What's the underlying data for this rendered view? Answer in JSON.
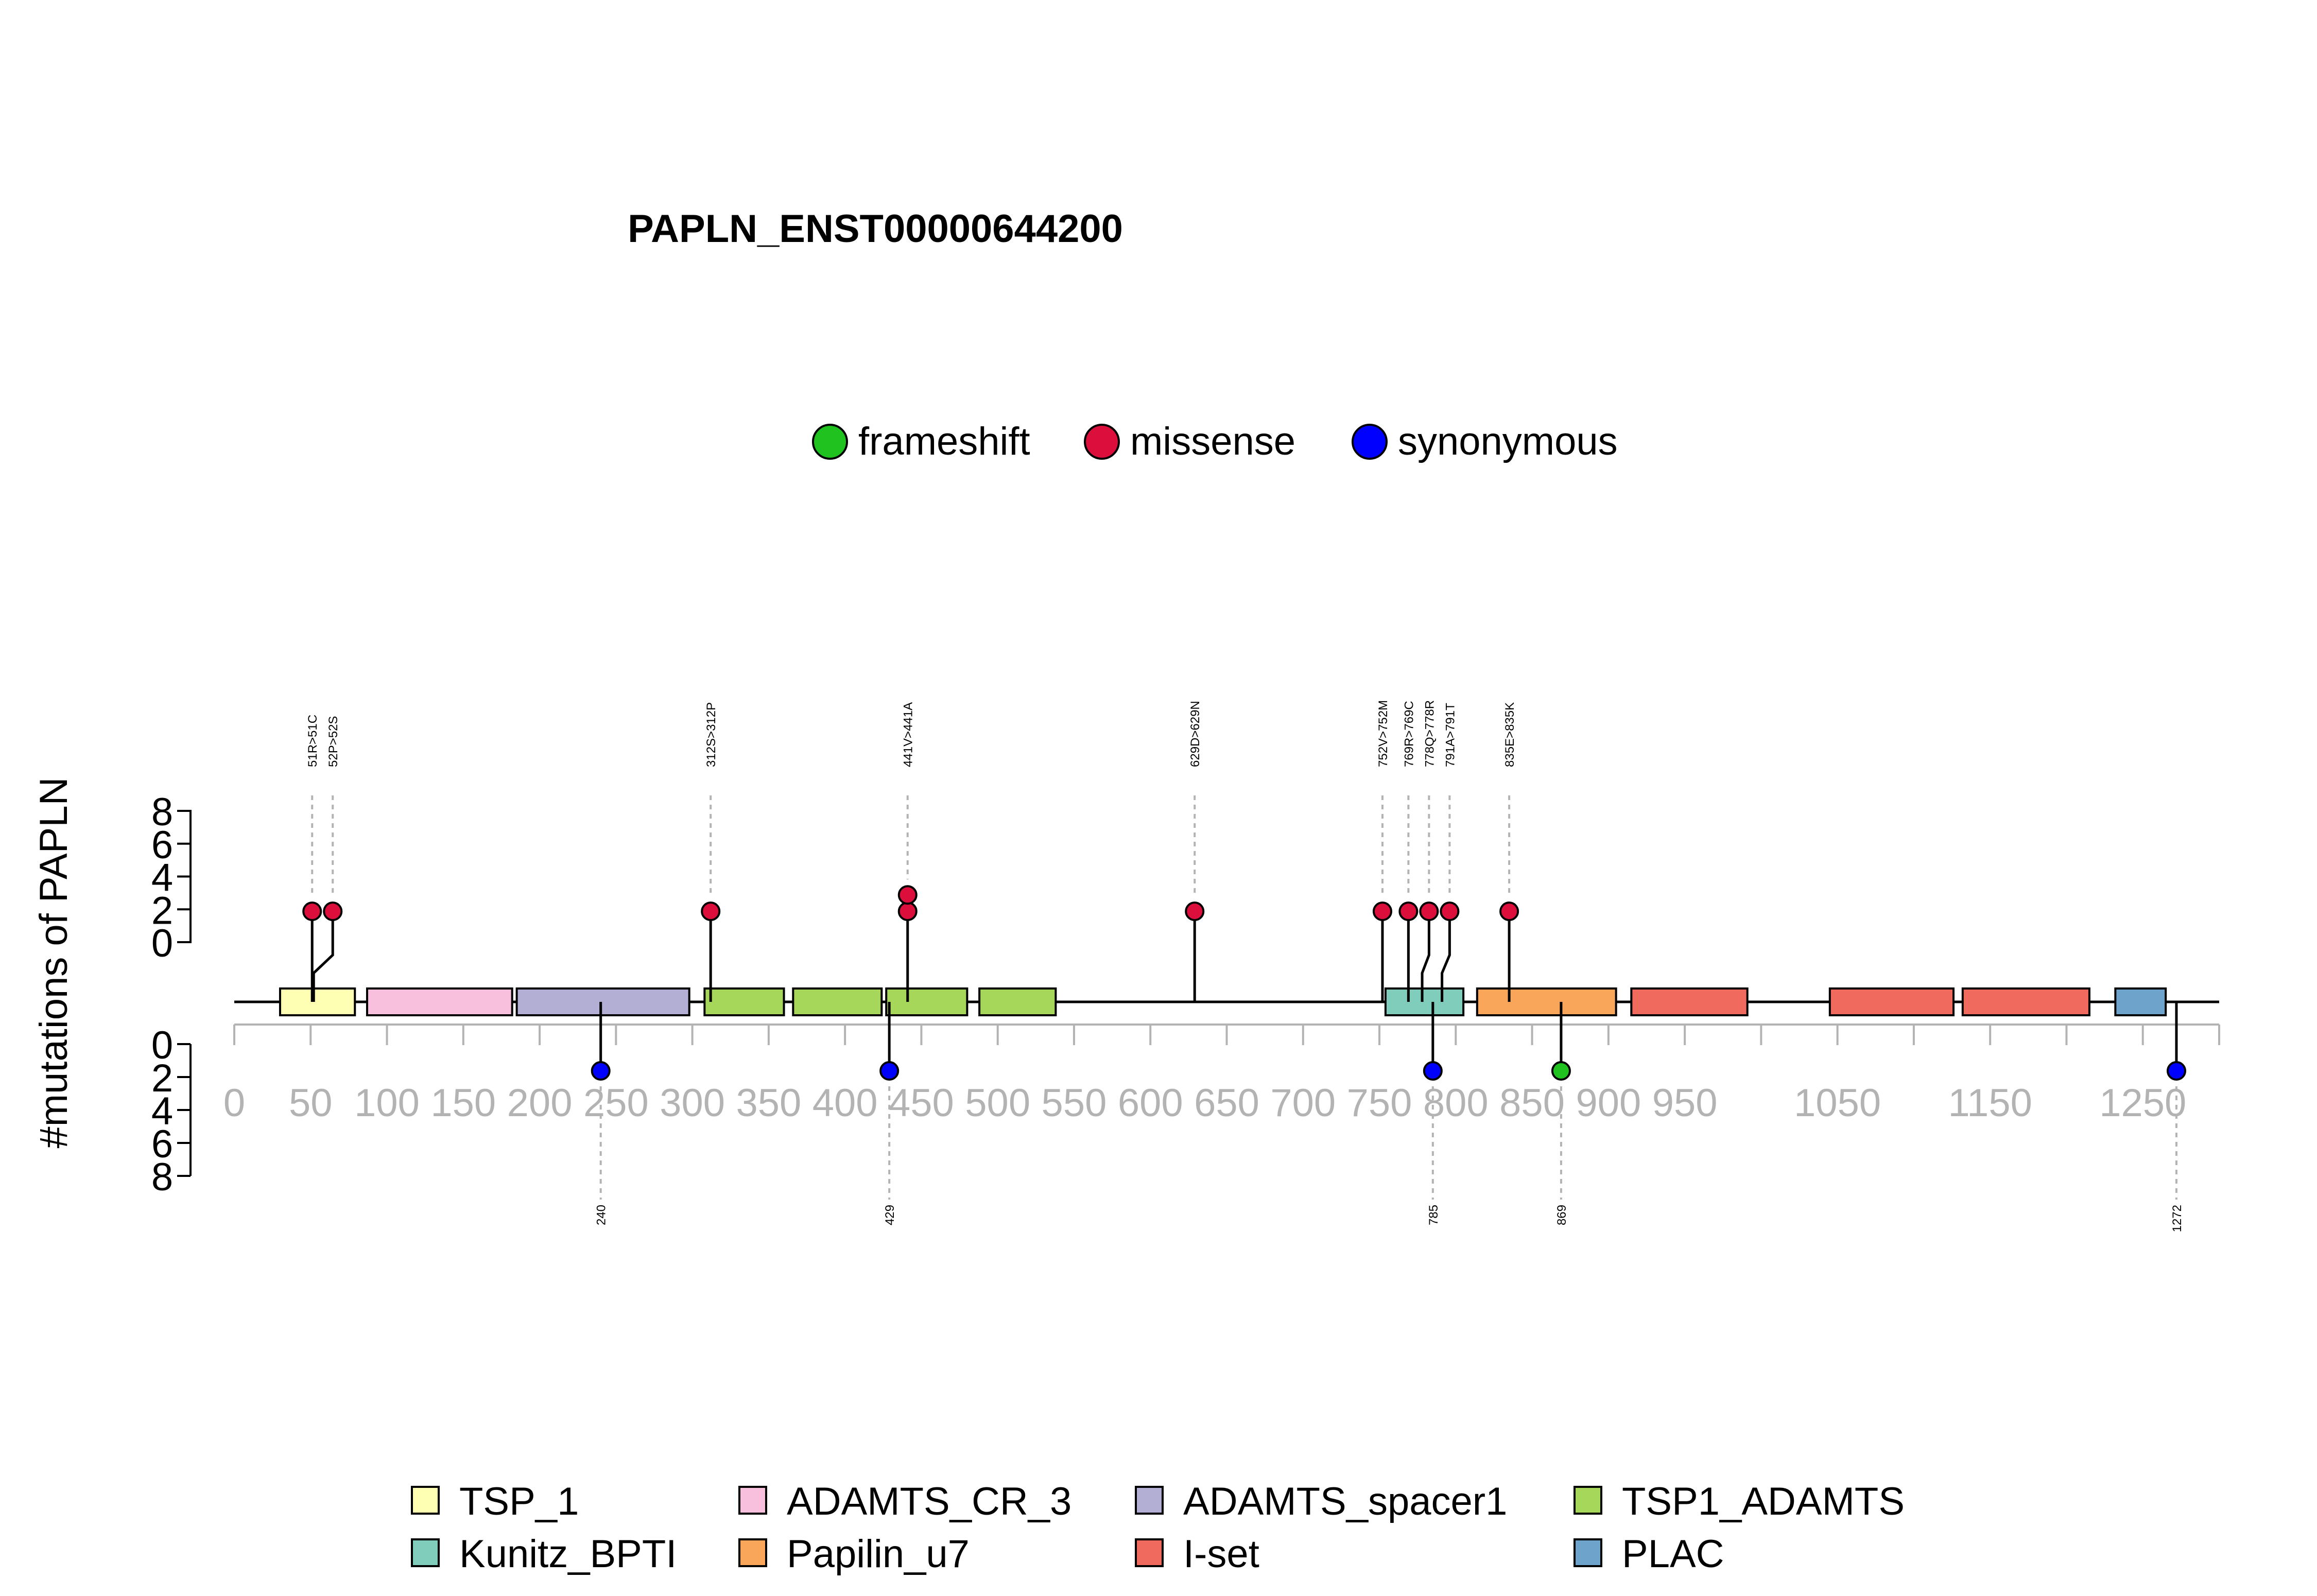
{
  "chart_data": {
    "type": "lollipop",
    "title": "PAPLN_ENST00000644200",
    "ylabel": "#mutations of PAPLN",
    "y_ticks_upper": [
      "8",
      "6",
      "4",
      "2",
      "0"
    ],
    "y_ticks_lower": [
      "0",
      "2",
      "4",
      "6",
      "8"
    ],
    "ylim": [
      0,
      8
    ],
    "xlim": [
      0,
      1300
    ],
    "x_tick_labels": [
      "0",
      "50",
      "100",
      "150",
      "200",
      "250",
      "300",
      "350",
      "400",
      "450",
      "500",
      "550",
      "600",
      "650",
      "700",
      "750",
      "800",
      "850",
      "900",
      "950",
      "1050",
      "1150",
      "1250"
    ],
    "mutation_types": [
      {
        "name": "frameshift",
        "color": "#1fc21f"
      },
      {
        "name": "missense",
        "color": "#dc0f3c"
      },
      {
        "name": "synonymous",
        "color": "#0000ff"
      }
    ],
    "mutations_top": [
      {
        "pos": 51,
        "label": "51R>51C",
        "type": "missense",
        "count": 1
      },
      {
        "pos": 52,
        "label": "52P>52S",
        "type": "missense",
        "count": 1
      },
      {
        "pos": 312,
        "label": "312S>312P",
        "type": "missense",
        "count": 1
      },
      {
        "pos": 441,
        "label": "441V>441A",
        "type": "missense",
        "count": 2
      },
      {
        "pos": 629,
        "label": "629D>629N",
        "type": "missense",
        "count": 1
      },
      {
        "pos": 752,
        "label": "752V>752M",
        "type": "missense",
        "count": 1
      },
      {
        "pos": 769,
        "label": "769R>769C",
        "type": "missense",
        "count": 1
      },
      {
        "pos": 778,
        "label": "778Q>778R",
        "type": "missense",
        "count": 1
      },
      {
        "pos": 791,
        "label": "791A>791T",
        "type": "missense",
        "count": 1
      },
      {
        "pos": 835,
        "label": "835E>835K",
        "type": "missense",
        "count": 1
      }
    ],
    "mutations_bottom": [
      {
        "pos": 240,
        "label": "240",
        "type": "synonymous",
        "count": 1
      },
      {
        "pos": 429,
        "label": "429",
        "type": "synonymous",
        "count": 1
      },
      {
        "pos": 785,
        "label": "785",
        "type": "synonymous",
        "count": 1
      },
      {
        "pos": 869,
        "label": "869",
        "type": "frameshift",
        "count": 1
      },
      {
        "pos": 1272,
        "label": "1272",
        "type": "synonymous",
        "count": 1
      }
    ],
    "domains": [
      {
        "name": "TSP_1",
        "start": 30,
        "end": 79
      },
      {
        "name": "ADAMTS_CR_3",
        "start": 87,
        "end": 182
      },
      {
        "name": "ADAMTS_spacer1",
        "start": 185,
        "end": 298
      },
      {
        "name": "TSP1_ADAMTS",
        "start": 308,
        "end": 360
      },
      {
        "name": "TSP1_ADAMTS",
        "start": 366,
        "end": 424
      },
      {
        "name": "TSP1_ADAMTS",
        "start": 427,
        "end": 480
      },
      {
        "name": "TSP1_ADAMTS",
        "start": 488,
        "end": 538
      },
      {
        "name": "Kunitz_BPTI",
        "start": 754,
        "end": 805
      },
      {
        "name": "Papilin_u7",
        "start": 814,
        "end": 905
      },
      {
        "name": "I-set",
        "start": 915,
        "end": 991
      },
      {
        "name": "I-set",
        "start": 1045,
        "end": 1126
      },
      {
        "name": "I-set",
        "start": 1132,
        "end": 1215
      },
      {
        "name": "PLAC",
        "start": 1232,
        "end": 1265
      }
    ],
    "domain_legend": [
      {
        "name": "TSP_1",
        "color": "#ffffb3"
      },
      {
        "name": "ADAMTS_CR_3",
        "color": "#f9c0de"
      },
      {
        "name": "ADAMTS_spacer1",
        "color": "#b3aed4"
      },
      {
        "name": "TSP1_ADAMTS",
        "color": "#a6d75b"
      },
      {
        "name": "Kunitz_BPTI",
        "color": "#80cdbb"
      },
      {
        "name": "Papilin_u7",
        "color": "#f9a65a"
      },
      {
        "name": "I-set",
        "color": "#f06a5e"
      },
      {
        "name": "PLAC",
        "color": "#6ea3cc"
      }
    ]
  }
}
